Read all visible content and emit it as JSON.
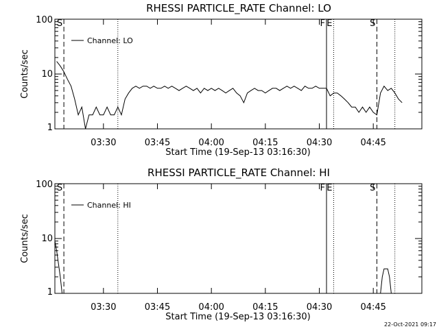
{
  "xlabel": "Start Time (19-Sep-13 03:16:30)",
  "footer": "22-Oct-2021 09:17",
  "chart_data": [
    {
      "type": "line",
      "title": "RHESSI PARTICLE_RATE Channel: LO",
      "ylabel": "Counts/sec",
      "legend": "Channel: LO",
      "yscale": "log",
      "ylim": [
        1,
        100
      ],
      "yticks": [
        "1",
        "10",
        "100"
      ],
      "xlim": [
        "03:16:30",
        "04:58:30"
      ],
      "xticks": [
        "03:30",
        "03:45",
        "04:00",
        "04:15",
        "04:30",
        "04:45"
      ],
      "markers": [
        {
          "label": "S",
          "time": "03:19",
          "style": "dashed"
        },
        {
          "label": "",
          "time": "03:34",
          "style": "dotted"
        },
        {
          "label": "F",
          "time": "04:32",
          "style": "solid"
        },
        {
          "label": "E",
          "time": "04:34",
          "style": "dotted"
        },
        {
          "label": "S",
          "time": "04:46",
          "style": "dashed"
        },
        {
          "label": "",
          "time": "04:51",
          "style": "dotted"
        }
      ],
      "x": [
        "03:17",
        "03:18",
        "03:19",
        "03:20",
        "03:21",
        "03:22",
        "03:23",
        "03:24",
        "03:25",
        "03:26",
        "03:27",
        "03:28",
        "03:29",
        "03:30",
        "03:31",
        "03:32",
        "03:33",
        "03:34",
        "03:35",
        "03:36",
        "03:37",
        "03:38",
        "03:39",
        "03:40",
        "03:41",
        "03:42",
        "03:43",
        "03:44",
        "03:45",
        "03:46",
        "03:47",
        "03:48",
        "03:49",
        "03:50",
        "03:51",
        "03:52",
        "03:53",
        "03:54",
        "03:55",
        "03:56",
        "03:57",
        "03:58",
        "03:59",
        "04:00",
        "04:01",
        "04:02",
        "04:03",
        "04:04",
        "04:05",
        "04:06",
        "04:07",
        "04:08",
        "04:09",
        "04:10",
        "04:11",
        "04:12",
        "04:13",
        "04:14",
        "04:15",
        "04:16",
        "04:17",
        "04:18",
        "04:19",
        "04:20",
        "04:21",
        "04:22",
        "04:23",
        "04:24",
        "04:25",
        "04:26",
        "04:27",
        "04:28",
        "04:29",
        "04:30",
        "04:31",
        "04:32",
        "04:33",
        "04:34",
        "04:35",
        "04:36",
        "04:37",
        "04:38",
        "04:39",
        "04:40",
        "04:41",
        "04:42",
        "04:43",
        "04:44",
        "04:45",
        "04:46",
        "04:47",
        "04:48",
        "04:49",
        "04:50",
        "04:51",
        "04:52",
        "04:53"
      ],
      "values": [
        17,
        14,
        11,
        8,
        6,
        3.5,
        1.8,
        2.5,
        1.0,
        1.8,
        1.8,
        2.5,
        1.8,
        1.8,
        2.5,
        1.8,
        1.8,
        2.5,
        1.8,
        3.5,
        4.5,
        5.5,
        6,
        5.5,
        6,
        6,
        5.5,
        6,
        5.5,
        5.5,
        6,
        5.5,
        6,
        5.5,
        5,
        5.5,
        6,
        5.5,
        5,
        5.5,
        4.5,
        5.5,
        5,
        5.5,
        5,
        5.5,
        5,
        4.5,
        5,
        5.5,
        4.5,
        4,
        3.0,
        4.5,
        5,
        5.5,
        5,
        5,
        4.5,
        5,
        5.5,
        5.5,
        5,
        5.5,
        6,
        5.5,
        6,
        5.5,
        5,
        6,
        5.5,
        5.5,
        6,
        5.5,
        5.5,
        5.5,
        4,
        4.5,
        4.5,
        4,
        3.5,
        3,
        2.5,
        2.5,
        2,
        2.5,
        2,
        2.5,
        2,
        1.8,
        4.5,
        6,
        5,
        5.5,
        4.5,
        3.5,
        3
      ]
    },
    {
      "type": "line",
      "title": "RHESSI PARTICLE_RATE Channel: HI",
      "ylabel": "Counts/sec",
      "legend": "Channel: HI",
      "yscale": "log",
      "ylim": [
        1,
        100
      ],
      "yticks": [
        "1",
        "10",
        "100"
      ],
      "xlim": [
        "03:16:30",
        "04:58:30"
      ],
      "xticks": [
        "03:30",
        "03:45",
        "04:00",
        "04:15",
        "04:30",
        "04:45"
      ],
      "markers": [
        {
          "label": "S",
          "time": "03:19",
          "style": "dashed"
        },
        {
          "label": "",
          "time": "03:34",
          "style": "dotted"
        },
        {
          "label": "F",
          "time": "04:32",
          "style": "solid"
        },
        {
          "label": "E",
          "time": "04:34",
          "style": "dotted"
        },
        {
          "label": "S",
          "time": "04:46",
          "style": "dashed"
        },
        {
          "label": "",
          "time": "04:51",
          "style": "dotted"
        }
      ],
      "x": [
        "03:16:30",
        "03:17",
        "03:17:30",
        "03:18",
        "03:18:30",
        "04:47",
        "04:47:30",
        "04:48",
        "04:48:30",
        "04:49",
        "04:49:30",
        "04:50"
      ],
      "values": [
        9,
        6,
        3.5,
        2,
        1,
        1,
        2,
        2.8,
        2.8,
        2.8,
        2,
        1
      ]
    }
  ]
}
